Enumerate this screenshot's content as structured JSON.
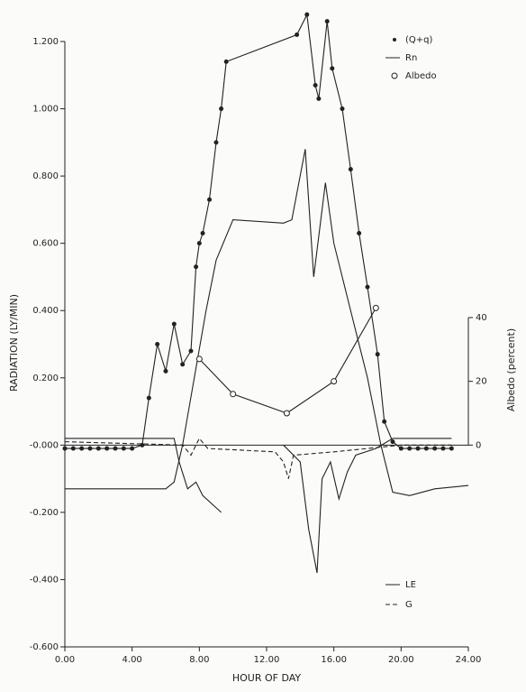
{
  "chart_data": {
    "type": "line",
    "x_label": "HOUR OF DAY",
    "y_label": "RADIATION (LY/MIN)",
    "y2_label": "Albedo (percent)",
    "xlim": [
      0,
      24
    ],
    "xticks": [
      {
        "value": 0,
        "label": "0.00"
      },
      {
        "value": 4,
        "label": "4.00"
      },
      {
        "value": 8,
        "label": "8.00"
      },
      {
        "value": 12,
        "label": "12.00"
      },
      {
        "value": 16,
        "label": "16.00"
      },
      {
        "value": 20,
        "label": "20.00"
      },
      {
        "value": 24,
        "label": "24.00"
      }
    ],
    "ylim": [
      -0.6,
      1.2
    ],
    "yticks": [
      {
        "value": 1.2,
        "label": "1.200"
      },
      {
        "value": 1.0,
        "label": "1.000"
      },
      {
        "value": 0.8,
        "label": "0.800"
      },
      {
        "value": 0.6,
        "label": "0.600"
      },
      {
        "value": 0.4,
        "label": "0.400"
      },
      {
        "value": 0.2,
        "label": "0.200"
      },
      {
        "value": 0,
        "label": "-0.000"
      },
      {
        "value": -0.2,
        "label": "-0.200"
      },
      {
        "value": -0.4,
        "label": "-0.400"
      },
      {
        "value": -0.6,
        "label": "-0.600"
      }
    ],
    "y2lim": [
      0,
      40
    ],
    "y2ticks": [
      0,
      20,
      40
    ],
    "series": [
      {
        "name": "(Q+q)",
        "color": "#222222",
        "marker": "dot",
        "dash": false,
        "x": [
          0,
          0.5,
          1,
          1.5,
          2,
          2.5,
          3,
          3.5,
          4,
          4.6,
          5.0,
          5.5,
          6.0,
          6.5,
          7.0,
          7.5,
          7.8,
          8.0,
          8.2,
          8.6,
          9.0,
          9.3,
          9.6,
          13.8,
          14.4,
          14.9,
          15.1,
          15.6,
          15.9,
          16.5,
          17.0,
          17.5,
          18.0,
          18.6,
          19.0,
          19.5,
          20.0,
          20.5,
          21,
          21.5,
          22,
          22.5,
          23
        ],
        "values": [
          -0.01,
          -0.01,
          -0.01,
          -0.01,
          -0.01,
          -0.01,
          -0.01,
          -0.01,
          -0.01,
          0.0,
          0.14,
          0.3,
          0.22,
          0.36,
          0.24,
          0.28,
          0.53,
          0.6,
          0.63,
          0.73,
          0.9,
          1.0,
          1.14,
          1.22,
          1.28,
          1.07,
          1.03,
          1.26,
          1.12,
          1.0,
          0.82,
          0.63,
          0.47,
          0.27,
          0.07,
          0.01,
          -0.01,
          -0.01,
          -0.01,
          -0.01,
          -0.01,
          -0.01,
          -0.01
        ]
      },
      {
        "name": "Rn",
        "color": "#222222",
        "marker": "none",
        "dash": false,
        "x": [
          0,
          3,
          6.0,
          6.5,
          7.0,
          7.7,
          8.4,
          9.0,
          10.0,
          13.0,
          13.5,
          14.3,
          14.8,
          15.5,
          16.0,
          17.0,
          18.0,
          18.8,
          19.5,
          20.5,
          22,
          24
        ],
        "values": [
          -0.13,
          -0.13,
          -0.13,
          -0.11,
          0.0,
          0.2,
          0.4,
          0.55,
          0.67,
          0.66,
          0.67,
          0.88,
          0.5,
          0.78,
          0.6,
          0.4,
          0.2,
          0.0,
          -0.14,
          -0.15,
          -0.13,
          -0.12
        ]
      },
      {
        "name": "Albedo",
        "color": "#222222",
        "marker": "circle",
        "dash": false,
        "axis": "y2",
        "x": [
          8.0,
          10.0,
          13.2,
          16.0,
          18.5
        ],
        "values": [
          27,
          16,
          10,
          20,
          43
        ]
      },
      {
        "name": "LE",
        "color": "#222222",
        "marker": "none",
        "dash": false,
        "x": [
          0,
          6.0,
          6.5,
          6.8,
          7.3,
          7.8,
          8.2,
          9.3,
          11,
          13.0,
          14.0,
          14.5,
          15.0,
          15.3,
          15.8,
          16.3,
          16.8,
          17.3,
          18.5,
          19.5,
          23
        ],
        "values": [
          0.02,
          0.02,
          0.02,
          -0.05,
          -0.13,
          -0.11,
          -0.15,
          -0.2,
          null,
          0.0,
          -0.05,
          -0.25,
          -0.38,
          -0.1,
          -0.05,
          -0.16,
          -0.08,
          -0.03,
          -0.01,
          0.02,
          0.02
        ]
      },
      {
        "name": "G",
        "color": "#222222",
        "marker": "none",
        "dash": true,
        "x": [
          0,
          7.0,
          7.5,
          8.0,
          8.5,
          12.5,
          13.0,
          13.3,
          13.6,
          16.0,
          18.0,
          20.0,
          23
        ],
        "values": [
          0.01,
          0.0,
          -0.03,
          0.02,
          -0.01,
          -0.02,
          -0.05,
          -0.1,
          -0.03,
          -0.02,
          -0.01,
          0.0,
          0.0
        ]
      }
    ]
  }
}
